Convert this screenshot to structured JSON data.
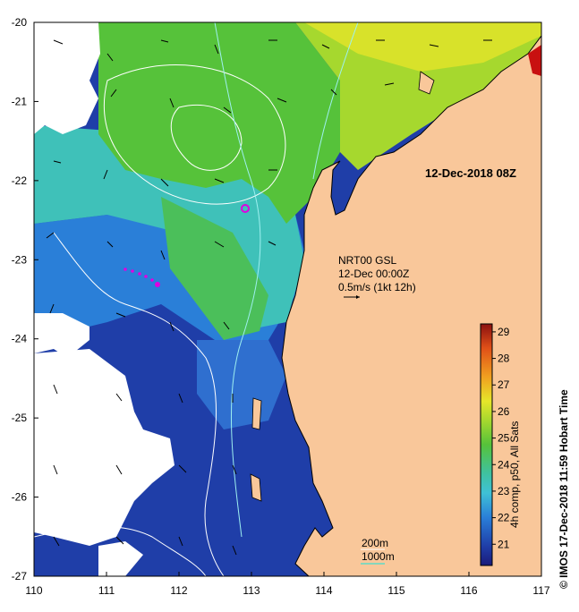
{
  "map": {
    "date_label": "12-Dec-2018 08Z",
    "current_label": {
      "line1": "NRT00 GSL",
      "line2": "12-Dec 00:00Z",
      "line3": "0.5m/s (1kt 12h)"
    },
    "depth_legend": {
      "line1": "200m",
      "line2": "1000m",
      "line2_color": "#40e0d0"
    },
    "x_ticks": [
      "110",
      "111",
      "112",
      "113",
      "114",
      "115",
      "116",
      "117"
    ],
    "y_ticks": [
      "-20",
      "-21",
      "-22",
      "-23",
      "-24",
      "-25",
      "-26",
      "-27"
    ],
    "colorbar": {
      "title": "4h comp, p50, All Sats",
      "ticks": [
        "21",
        "22",
        "23",
        "24",
        "25",
        "26",
        "27",
        "28",
        "29"
      ],
      "range": [
        20.2,
        29.3
      ]
    },
    "credit": "© IMOS 17-Dec-2018 11:59 Hobart Time",
    "colors": {
      "land": "#f9c79a",
      "cloud": "#ffffff",
      "deep_blue": "#1f3ea8",
      "mid_blue": "#2a7fd8",
      "cyan": "#3fc1b9",
      "green": "#56c23a",
      "yellow": "#d8e22a",
      "marker": "#e000e0"
    }
  }
}
